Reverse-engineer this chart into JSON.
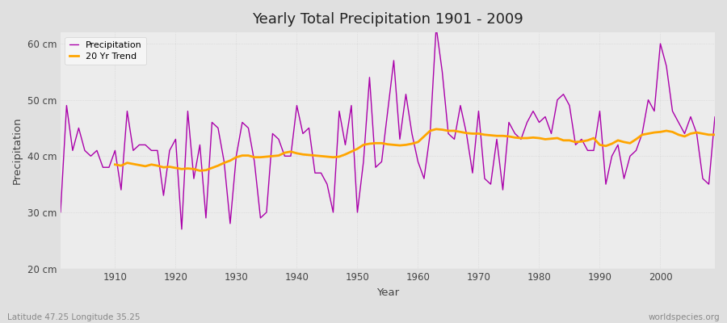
{
  "title": "Yearly Total Precipitation 1901 - 2009",
  "xlabel": "Year",
  "ylabel": "Precipitation",
  "subtitle": "Latitude 47.25 Longitude 35.25",
  "watermark": "worldspecies.org",
  "ylim": [
    20,
    62
  ],
  "yticks": [
    20,
    30,
    40,
    50,
    60
  ],
  "ytick_labels": [
    "20 cm",
    "30 cm",
    "40 cm",
    "50 cm",
    "60 cm"
  ],
  "xlim": [
    1901,
    2009
  ],
  "xticks": [
    1910,
    1920,
    1930,
    1940,
    1950,
    1960,
    1970,
    1980,
    1990,
    2000
  ],
  "years": [
    1901,
    1902,
    1903,
    1904,
    1905,
    1906,
    1907,
    1908,
    1909,
    1910,
    1911,
    1912,
    1913,
    1914,
    1915,
    1916,
    1917,
    1918,
    1919,
    1920,
    1921,
    1922,
    1923,
    1924,
    1925,
    1926,
    1927,
    1928,
    1929,
    1930,
    1931,
    1932,
    1933,
    1934,
    1935,
    1936,
    1937,
    1938,
    1939,
    1940,
    1941,
    1942,
    1943,
    1944,
    1945,
    1946,
    1947,
    1948,
    1949,
    1950,
    1951,
    1952,
    1953,
    1954,
    1955,
    1956,
    1957,
    1958,
    1959,
    1960,
    1961,
    1962,
    1963,
    1964,
    1965,
    1966,
    1967,
    1968,
    1969,
    1970,
    1971,
    1972,
    1973,
    1974,
    1975,
    1976,
    1977,
    1978,
    1979,
    1980,
    1981,
    1982,
    1983,
    1984,
    1985,
    1986,
    1987,
    1988,
    1989,
    1990,
    1991,
    1992,
    1993,
    1994,
    1995,
    1996,
    1997,
    1998,
    1999,
    2000,
    2001,
    2002,
    2003,
    2004,
    2005,
    2006,
    2007,
    2008,
    2009
  ],
  "precip": [
    30,
    49,
    41,
    45,
    41,
    40,
    41,
    38,
    38,
    41,
    34,
    48,
    41,
    42,
    42,
    41,
    41,
    33,
    41,
    43,
    27,
    48,
    36,
    42,
    29,
    46,
    45,
    39,
    28,
    40,
    46,
    45,
    39,
    29,
    30,
    44,
    43,
    40,
    40,
    49,
    44,
    45,
    37,
    37,
    35,
    30,
    48,
    42,
    49,
    30,
    39,
    54,
    38,
    39,
    48,
    57,
    43,
    51,
    44,
    39,
    36,
    44,
    63,
    55,
    44,
    43,
    49,
    44,
    37,
    48,
    36,
    35,
    43,
    34,
    46,
    44,
    43,
    46,
    48,
    46,
    47,
    44,
    50,
    51,
    49,
    42,
    43,
    41,
    41,
    48,
    35,
    40,
    42,
    36,
    40,
    41,
    44,
    50,
    48,
    60,
    56,
    48,
    46,
    44,
    47,
    44,
    36,
    35,
    47
  ],
  "trend_years": [
    1910,
    1911,
    1912,
    1913,
    1914,
    1915,
    1916,
    1917,
    1918,
    1919,
    1920,
    1921,
    1922,
    1923,
    1924,
    1925,
    1926,
    1927,
    1928,
    1929,
    1930,
    1931,
    1932,
    1933,
    1934,
    1935,
    1936,
    1937,
    1938,
    1939,
    1940,
    1941,
    1942,
    1943,
    1944,
    1945,
    1946,
    1947,
    1948,
    1949,
    1950,
    1951,
    1952,
    1953,
    1954,
    1955,
    1956,
    1957,
    1958,
    1959,
    1960,
    1961,
    1962,
    1963,
    1964,
    1965,
    1966,
    1967,
    1968,
    1969,
    1970,
    1971,
    1972,
    1973,
    1974,
    1975,
    1976,
    1977,
    1978,
    1979,
    1980,
    1981,
    1982,
    1983,
    1984,
    1985,
    1986,
    1987,
    1988,
    1989,
    1990,
    1991,
    1992,
    1993,
    1994,
    1995,
    1996,
    1997,
    1998,
    1999,
    2000,
    2001,
    2002,
    2003,
    2004,
    2005,
    2006,
    2007,
    2008,
    2009
  ],
  "trend": [
    38.5,
    38.3,
    38.8,
    38.6,
    38.4,
    38.2,
    38.5,
    38.3,
    38.0,
    38.1,
    37.9,
    37.7,
    37.8,
    37.7,
    37.4,
    37.5,
    37.9,
    38.3,
    38.8,
    39.2,
    39.8,
    40.1,
    40.1,
    39.8,
    39.8,
    39.9,
    40.0,
    40.1,
    40.6,
    40.8,
    40.5,
    40.3,
    40.2,
    40.1,
    40.0,
    39.9,
    39.8,
    39.9,
    40.3,
    40.8,
    41.3,
    42.0,
    42.2,
    42.3,
    42.3,
    42.1,
    42.0,
    41.9,
    42.0,
    42.2,
    42.5,
    43.5,
    44.5,
    44.8,
    44.7,
    44.5,
    44.5,
    44.3,
    44.1,
    44.0,
    44.0,
    43.8,
    43.7,
    43.6,
    43.6,
    43.5,
    43.3,
    43.2,
    43.2,
    43.3,
    43.2,
    43.0,
    43.1,
    43.2,
    42.8,
    42.8,
    42.5,
    42.6,
    42.8,
    43.2,
    42.0,
    41.8,
    42.2,
    42.8,
    42.5,
    42.3,
    43.0,
    43.8,
    44.0,
    44.2,
    44.3,
    44.5,
    44.3,
    43.8,
    43.5,
    44.0,
    44.2,
    44.0,
    43.8,
    43.8
  ],
  "precip_color": "#aa00aa",
  "trend_color": "#FFA500",
  "fig_bg_color": "#e0e0e0",
  "plot_bg_color": "#ececec",
  "grid_color": "#d0d0d0",
  "text_color": "#444444",
  "legend_bg": "#f8f8f8",
  "legend_edge": "#cccccc"
}
